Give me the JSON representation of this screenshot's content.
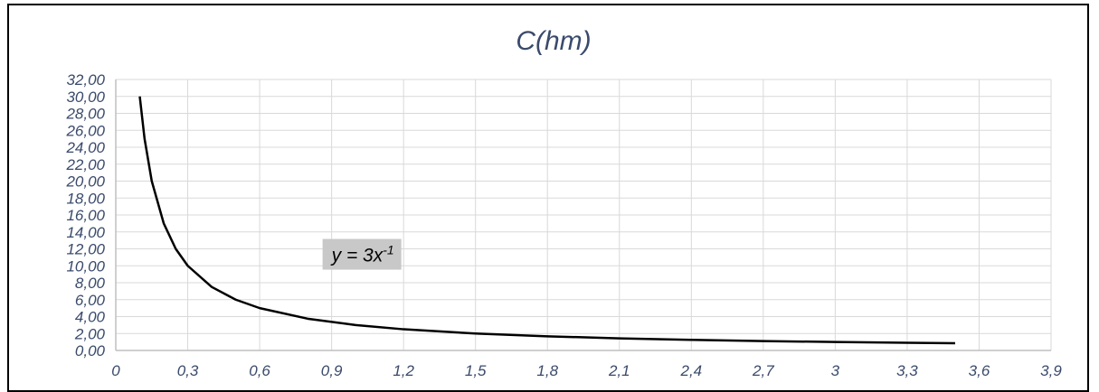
{
  "chart_data": {
    "type": "line",
    "title": "C(hm)",
    "xlabel": "",
    "ylabel": "",
    "x_ticks": [
      "0",
      "0,3",
      "0,6",
      "0,9",
      "1,2",
      "1,5",
      "1,8",
      "2,1",
      "2,4",
      "2,7",
      "3",
      "3,3",
      "3,6",
      "3,9"
    ],
    "x_tick_values": [
      0,
      0.3,
      0.6,
      0.9,
      1.2,
      1.5,
      1.8,
      2.1,
      2.4,
      2.7,
      3.0,
      3.3,
      3.6,
      3.9
    ],
    "y_ticks": [
      "0,00",
      "2,00",
      "4,00",
      "6,00",
      "8,00",
      "10,00",
      "12,00",
      "14,00",
      "16,00",
      "18,00",
      "20,00",
      "22,00",
      "24,00",
      "26,00",
      "28,00",
      "30,00",
      "32,00"
    ],
    "y_tick_values": [
      0,
      2,
      4,
      6,
      8,
      10,
      12,
      14,
      16,
      18,
      20,
      22,
      24,
      26,
      28,
      30,
      32
    ],
    "xlim": [
      0,
      3.9
    ],
    "ylim": [
      0,
      32
    ],
    "grid": true,
    "legend": "none",
    "annotation": {
      "text": "y = 3x",
      "superscript": "-1",
      "x": 0.9,
      "y": 10.5
    },
    "series": [
      {
        "color": "#000000",
        "x": [
          0.1,
          0.12,
          0.15,
          0.2,
          0.25,
          0.3,
          0.4,
          0.5,
          0.6,
          0.8,
          1.0,
          1.2,
          1.5,
          1.8,
          2.1,
          2.4,
          2.7,
          3.0,
          3.3,
          3.5
        ],
        "y": [
          30,
          25,
          20,
          15,
          12,
          10,
          7.5,
          6,
          5,
          3.75,
          3,
          2.5,
          2,
          1.67,
          1.43,
          1.25,
          1.11,
          1,
          0.91,
          0.86
        ]
      }
    ]
  },
  "colors": {
    "grid": "#d9d9d9",
    "axis": "#bfbfbf",
    "title": "#3a4a6b",
    "tick": "#3a4a6b",
    "annotation_bg": "#c8c8c8"
  }
}
